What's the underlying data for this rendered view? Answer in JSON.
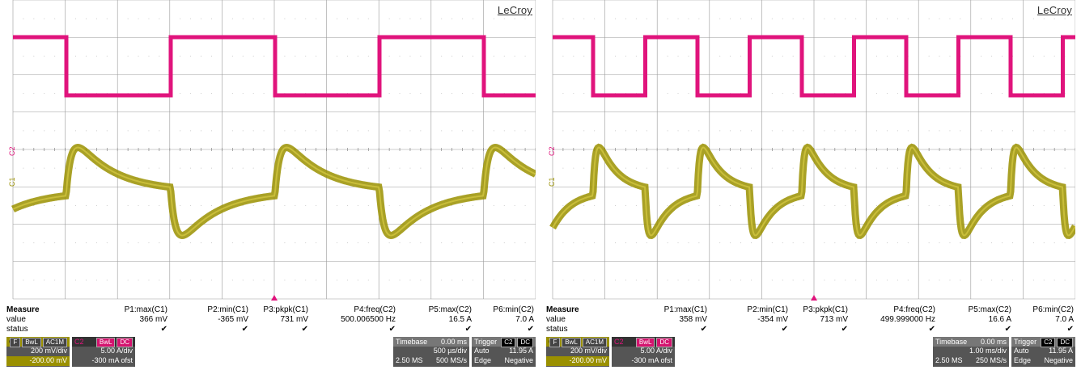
{
  "colors": {
    "ch1": "#9a9000",
    "ch2": "#e0147c",
    "grid": "#9a9a9a",
    "panel": "#555555"
  },
  "scopes": [
    {
      "brand": "LeCroy",
      "ch2_marker": "C2",
      "ch1_marker": "C1",
      "measure": {
        "title": "Measure",
        "row_value": "value",
        "row_status": "status",
        "params": [
          {
            "name": "P1:max(C1)",
            "value": "366 mV"
          },
          {
            "name": "P2:min(C1)",
            "value": "-365 mV"
          },
          {
            "name": "P3:pkpk(C1)",
            "value": "731 mV"
          },
          {
            "name": "P4:freq(C2)",
            "value": "500.006500 Hz"
          },
          {
            "name": "P5:max(C2)",
            "value": "16.5 A"
          },
          {
            "name": "P6:min(C2)",
            "value": "7.0 A"
          }
        ],
        "check": "✔"
      },
      "c1_box": {
        "label": "C1",
        "flags": [
          "F",
          "BwL",
          "AC1M"
        ],
        "scale": "200 mV/div",
        "offset": "-200.00 mV"
      },
      "c2_box": {
        "label": "C2",
        "flags": [
          "BwL",
          "DC"
        ],
        "scale": "5.00 A/div",
        "offset": "-300 mA ofst"
      },
      "timebase": {
        "label": "Timebase",
        "delay": "0.00 ms",
        "scale": "500 µs/div",
        "samples": "2.50 MS",
        "rate": "500 MS/s"
      },
      "trigger": {
        "label": "Trigger",
        "src": "C2",
        "coupling": "DC",
        "mode": "Auto",
        "level": "11.95 A",
        "type": "Edge",
        "slope": "Negative"
      }
    },
    {
      "brand": "LeCroy",
      "ch2_marker": "C2",
      "ch1_marker": "C1",
      "measure": {
        "title": "Measure",
        "row_value": "value",
        "row_status": "status",
        "params": [
          {
            "name": "P1:max(C1)",
            "value": "358 mV"
          },
          {
            "name": "P2:min(C1)",
            "value": "-354 mV"
          },
          {
            "name": "P3:pkpk(C1)",
            "value": "713 mV"
          },
          {
            "name": "P4:freq(C2)",
            "value": "499.999000 Hz"
          },
          {
            "name": "P5:max(C2)",
            "value": "16.6 A"
          },
          {
            "name": "P6:min(C2)",
            "value": "7.0 A"
          }
        ],
        "check": "✔"
      },
      "c1_box": {
        "label": "C1",
        "flags": [
          "F",
          "BwL",
          "AC1M"
        ],
        "scale": "200 mV/div",
        "offset": "-200.00 mV"
      },
      "c2_box": {
        "label": "C2",
        "flags": [
          "BwL",
          "DC"
        ],
        "scale": "5.00 A/div",
        "offset": "-300 mA ofst"
      },
      "timebase": {
        "label": "Timebase",
        "delay": "0.00 ms",
        "scale": "1.00 ms/div",
        "samples": "2.50 MS",
        "rate": "250 MS/s"
      },
      "trigger": {
        "label": "Trigger",
        "src": "C2",
        "coupling": "DC",
        "mode": "Auto",
        "level": "11.95 A",
        "type": "Edge",
        "slope": "Negative"
      }
    }
  ]
}
